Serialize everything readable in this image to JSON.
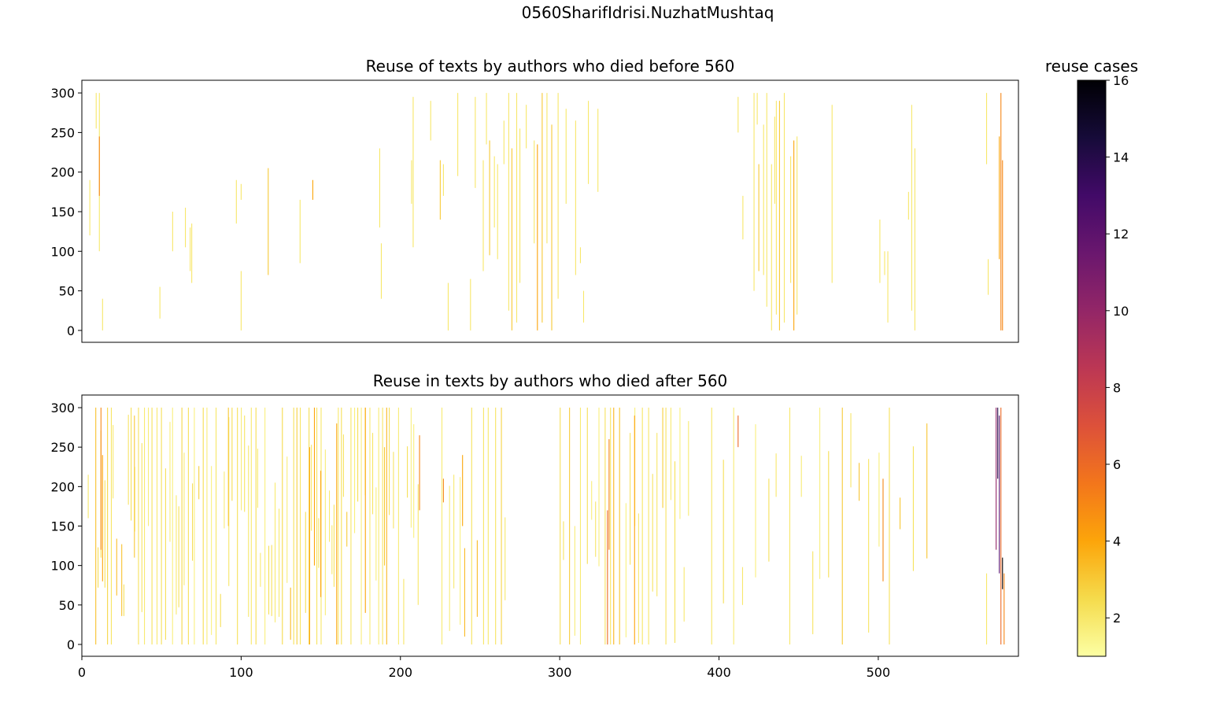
{
  "figure": {
    "suptitle": "0560SharifIdrisi.NuzhatMushtaq"
  },
  "colorbar": {
    "label": "reuse cases",
    "colormap": "inferno_r",
    "range": [
      1,
      16
    ],
    "ticks": [
      2,
      4,
      6,
      8,
      10,
      12,
      14,
      16
    ]
  },
  "chart_data": [
    {
      "type": "line",
      "title": "Reuse of texts by authors who died before 560",
      "xlabel": "",
      "ylabel": "",
      "xlim": [
        0,
        588
      ],
      "ylim": [
        -15,
        316
      ],
      "yticks": [
        0,
        50,
        100,
        150,
        200,
        250,
        300
      ],
      "xticks_shown": false,
      "segments": [
        [
          5,
          120,
          190,
          2
        ],
        [
          9,
          255,
          300,
          2
        ],
        [
          11,
          100,
          300,
          2
        ],
        [
          11,
          170,
          245,
          5
        ],
        [
          13,
          0,
          40,
          2
        ],
        [
          49,
          15,
          55,
          2
        ],
        [
          57,
          100,
          150,
          2
        ],
        [
          65,
          105,
          155,
          2
        ],
        [
          68,
          75,
          130,
          2
        ],
        [
          69,
          60,
          135,
          2
        ],
        [
          97,
          135,
          190,
          2
        ],
        [
          100,
          0,
          75,
          2
        ],
        [
          100,
          165,
          185,
          2
        ],
        [
          117,
          70,
          205,
          3
        ],
        [
          137,
          85,
          165,
          2
        ],
        [
          145,
          165,
          190,
          4
        ],
        [
          187,
          130,
          230,
          2
        ],
        [
          188,
          40,
          110,
          2
        ],
        [
          207,
          160,
          215,
          2
        ],
        [
          208,
          105,
          295,
          2
        ],
        [
          219,
          240,
          290,
          2
        ],
        [
          225,
          140,
          215,
          3
        ],
        [
          227,
          170,
          210,
          2
        ],
        [
          230,
          0,
          60,
          2
        ],
        [
          236,
          195,
          300,
          2
        ],
        [
          244,
          0,
          65,
          2
        ],
        [
          247,
          180,
          295,
          2
        ],
        [
          252,
          75,
          215,
          2
        ],
        [
          254,
          235,
          300,
          2
        ],
        [
          256,
          95,
          240,
          3
        ],
        [
          259,
          130,
          220,
          2
        ],
        [
          261,
          90,
          210,
          2
        ],
        [
          265,
          210,
          265,
          2
        ],
        [
          268,
          25,
          300,
          2
        ],
        [
          270,
          0,
          230,
          3
        ],
        [
          273,
          10,
          300,
          2
        ],
        [
          275,
          60,
          255,
          2
        ],
        [
          279,
          230,
          285,
          2
        ],
        [
          284,
          110,
          240,
          2
        ],
        [
          286,
          0,
          235,
          4
        ],
        [
          289,
          10,
          300,
          3
        ],
        [
          292,
          110,
          300,
          2
        ],
        [
          295,
          0,
          260,
          3
        ],
        [
          299,
          40,
          300,
          2
        ],
        [
          304,
          160,
          280,
          2
        ],
        [
          310,
          70,
          265,
          2
        ],
        [
          313,
          85,
          105,
          2
        ],
        [
          315,
          10,
          50,
          2
        ],
        [
          318,
          185,
          290,
          2
        ],
        [
          324,
          175,
          280,
          2
        ],
        [
          412,
          250,
          295,
          2
        ],
        [
          415,
          115,
          170,
          2
        ],
        [
          422,
          50,
          300,
          2
        ],
        [
          424,
          260,
          300,
          2
        ],
        [
          425,
          75,
          210,
          3
        ],
        [
          428,
          70,
          260,
          2
        ],
        [
          430,
          30,
          300,
          2
        ],
        [
          433,
          0,
          210,
          2
        ],
        [
          435,
          160,
          270,
          2
        ],
        [
          436,
          20,
          290,
          2
        ],
        [
          438,
          0,
          290,
          3
        ],
        [
          441,
          10,
          300,
          2
        ],
        [
          445,
          60,
          220,
          2
        ],
        [
          447,
          0,
          240,
          4
        ],
        [
          449,
          20,
          245,
          2
        ],
        [
          471,
          60,
          285,
          2
        ],
        [
          501,
          60,
          140,
          2
        ],
        [
          504,
          70,
          100,
          2
        ],
        [
          506,
          10,
          100,
          2
        ],
        [
          519,
          140,
          175,
          2
        ],
        [
          521,
          25,
          285,
          2
        ],
        [
          523,
          0,
          230,
          2
        ],
        [
          568,
          210,
          300,
          2
        ],
        [
          569,
          45,
          90,
          2
        ],
        [
          576,
          90,
          245,
          4
        ],
        [
          577,
          0,
          300,
          5
        ],
        [
          578,
          0,
          215,
          5
        ]
      ]
    },
    {
      "type": "line",
      "title": "Reuse in texts by authors who died after 560",
      "xlabel": "",
      "ylabel": "",
      "xlim": [
        0,
        588
      ],
      "ylim": [
        -15,
        316
      ],
      "yticks": [
        0,
        50,
        100,
        150,
        200,
        250,
        300
      ],
      "xticks": [
        0,
        100,
        200,
        300,
        400,
        500
      ],
      "dense_bands": [
        {
          "from": 8,
          "to": 212,
          "step": 2.2,
          "seed": 7
        },
        {
          "from": 226,
          "to": 268,
          "step": 3.6,
          "seed": 11
        },
        {
          "from": 300,
          "to": 384,
          "step": 3.2,
          "seed": 19
        },
        {
          "from": 395,
          "to": 536,
          "step": 6.5,
          "seed": 23
        }
      ],
      "segments": [
        [
          4,
          160,
          215,
          2
        ],
        [
          12,
          120,
          300,
          5
        ],
        [
          13,
          80,
          240,
          4
        ],
        [
          33,
          110,
          290,
          3
        ],
        [
          92,
          150,
          300,
          3
        ],
        [
          143,
          0,
          250,
          4
        ],
        [
          146,
          100,
          300,
          4
        ],
        [
          150,
          60,
          220,
          4
        ],
        [
          160,
          0,
          280,
          4
        ],
        [
          178,
          40,
          300,
          4
        ],
        [
          190,
          100,
          250,
          3
        ],
        [
          212,
          170,
          265,
          5
        ],
        [
          227,
          180,
          210,
          5
        ],
        [
          239,
          150,
          240,
          4
        ],
        [
          330,
          0,
          170,
          6
        ],
        [
          331,
          120,
          260,
          5
        ],
        [
          347,
          0,
          290,
          4
        ],
        [
          412,
          250,
          290,
          6
        ],
        [
          503,
          80,
          210,
          5
        ],
        [
          568,
          0,
          90,
          2
        ],
        [
          574,
          120,
          300,
          10
        ],
        [
          575,
          210,
          300,
          14
        ],
        [
          576,
          90,
          290,
          12
        ],
        [
          577,
          0,
          300,
          6
        ],
        [
          578,
          70,
          110,
          16
        ],
        [
          579,
          0,
          90,
          5
        ]
      ]
    }
  ]
}
